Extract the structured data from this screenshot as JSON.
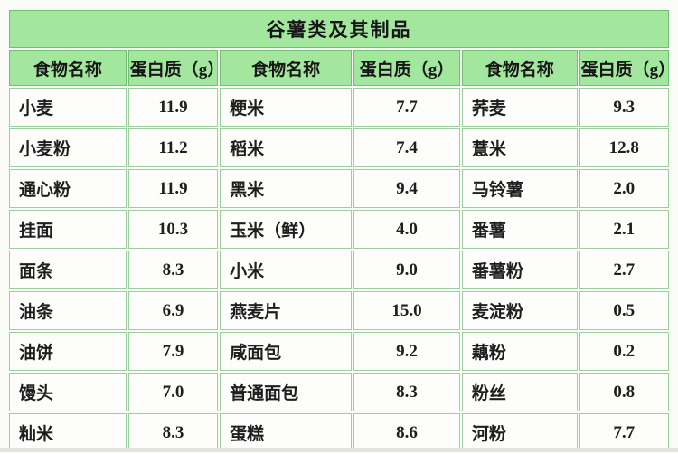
{
  "chart_data": {
    "type": "table",
    "title": "谷薯类及其制品",
    "columns": [
      "食物名称",
      "蛋白质（g）",
      "食物名称",
      "蛋白质（g）",
      "食物名称",
      "蛋白质（g）"
    ],
    "rows": [
      [
        "小麦",
        "11.9",
        "粳米",
        "7.7",
        "荞麦",
        "9.3"
      ],
      [
        "小麦粉",
        "11.2",
        "稻米",
        "7.4",
        "薏米",
        "12.8"
      ],
      [
        "通心粉",
        "11.9",
        "黑米",
        "9.4",
        "马铃薯",
        "2.0"
      ],
      [
        "挂面",
        "10.3",
        "玉米（鲜）",
        "4.0",
        "番薯",
        "2.1"
      ],
      [
        "面条",
        "8.3",
        "小米",
        "9.0",
        "番薯粉",
        "2.7"
      ],
      [
        "油条",
        "6.9",
        "燕麦片",
        "15.0",
        "麦淀粉",
        "0.5"
      ],
      [
        "油饼",
        "7.9",
        "咸面包",
        "9.2",
        "藕粉",
        "0.2"
      ],
      [
        "馒头",
        "7.0",
        "普通面包",
        "8.3",
        "粉丝",
        "0.8"
      ],
      [
        "籼米",
        "8.3",
        "蛋糕",
        "8.6",
        "河粉",
        "7.7"
      ]
    ]
  },
  "colors": {
    "header_bg": "#a3e69d",
    "outer_border": "#6fbf74",
    "inner_border": "#9bcf9d",
    "cell_bg": "#fdfefb",
    "text": "#1e1e1e",
    "page_bg": "#fbfbf8"
  }
}
